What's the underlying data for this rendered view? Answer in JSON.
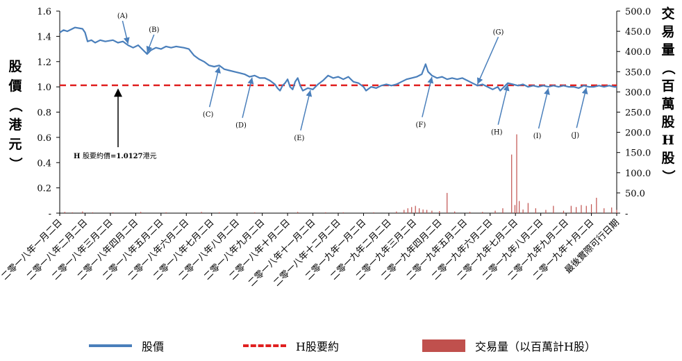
{
  "chart_data": {
    "type": "line",
    "left_axis": {
      "title": "股價（港元）",
      "ticks": [
        "1.6",
        "1.4",
        "1.2",
        "1.0",
        "0.8",
        "0.6",
        "0.4",
        "0.2",
        "-"
      ],
      "range": [
        0,
        1.6
      ]
    },
    "right_axis": {
      "title": "交易量（百萬股H股）",
      "ticks": [
        "500.0",
        "450.0",
        "400.0",
        "350.0",
        "300.0",
        "250.0",
        "200.0",
        "150.0",
        "100.0",
        "50.0",
        "-"
      ],
      "range": [
        0,
        500
      ]
    },
    "categories": [
      "二零一八年一月二日",
      "二零一八年二月二日",
      "二零一八年三月二日",
      "二零一八年四月二日",
      "二零一八年五月二日",
      "二零一八年六月二日",
      "二零一八年七月二日",
      "二零一八年八月二日",
      "二零一八年九月二日",
      "二零一八年十月二日",
      "二零一八年十一月二日",
      "二零一八年十二月二日",
      "二零一九年一月二日",
      "二零一九年二月二日",
      "二零一九年三月二日",
      "二零一九年四月二日",
      "二零一九年五月二日",
      "二零一九年六月二日",
      "二零一九年七月二日",
      "二零一九年八月二日",
      "二零一九年九月二日",
      "二零一九年十月二日",
      "最後實際可行日期"
    ],
    "series": [
      {
        "name": "股價",
        "axis": "left",
        "color": "#4a7fbb",
        "points": [
          [
            0.0,
            1.43
          ],
          [
            0.15,
            1.45
          ],
          [
            0.3,
            1.44
          ],
          [
            0.6,
            1.47
          ],
          [
            0.9,
            1.46
          ],
          [
            1.0,
            1.43
          ],
          [
            1.1,
            1.36
          ],
          [
            1.25,
            1.37
          ],
          [
            1.4,
            1.35
          ],
          [
            1.6,
            1.37
          ],
          [
            1.8,
            1.36
          ],
          [
            2.1,
            1.37
          ],
          [
            2.3,
            1.35
          ],
          [
            2.5,
            1.36
          ],
          [
            2.7,
            1.33
          ],
          [
            2.9,
            1.31
          ],
          [
            3.1,
            1.33
          ],
          [
            3.3,
            1.29
          ],
          [
            3.45,
            1.26
          ],
          [
            3.6,
            1.29
          ],
          [
            3.8,
            1.31
          ],
          [
            4.0,
            1.3
          ],
          [
            4.2,
            1.32
          ],
          [
            4.4,
            1.31
          ],
          [
            4.6,
            1.32
          ],
          [
            4.9,
            1.31
          ],
          [
            5.1,
            1.3
          ],
          [
            5.3,
            1.25
          ],
          [
            5.5,
            1.22
          ],
          [
            5.7,
            1.2
          ],
          [
            5.9,
            1.17
          ],
          [
            6.1,
            1.16
          ],
          [
            6.3,
            1.17
          ],
          [
            6.5,
            1.14
          ],
          [
            6.7,
            1.13
          ],
          [
            6.9,
            1.12
          ],
          [
            7.1,
            1.11
          ],
          [
            7.3,
            1.1
          ],
          [
            7.5,
            1.08
          ],
          [
            7.7,
            1.09
          ],
          [
            7.9,
            1.07
          ],
          [
            8.1,
            1.07
          ],
          [
            8.3,
            1.05
          ],
          [
            8.5,
            1.02
          ],
          [
            8.6,
            0.99
          ],
          [
            8.7,
            0.97
          ],
          [
            8.8,
            1.01
          ],
          [
            8.9,
            1.03
          ],
          [
            9.0,
            1.06
          ],
          [
            9.1,
            1.0
          ],
          [
            9.2,
            0.98
          ],
          [
            9.3,
            1.04
          ],
          [
            9.4,
            1.07
          ],
          [
            9.5,
            1.01
          ],
          [
            9.6,
            0.97
          ],
          [
            9.8,
            0.99
          ],
          [
            10.0,
            0.98
          ],
          [
            10.2,
            1.02
          ],
          [
            10.4,
            1.05
          ],
          [
            10.6,
            1.09
          ],
          [
            10.8,
            1.07
          ],
          [
            11.0,
            1.08
          ],
          [
            11.2,
            1.06
          ],
          [
            11.4,
            1.08
          ],
          [
            11.6,
            1.04
          ],
          [
            11.8,
            1.03
          ],
          [
            12.0,
            1.0
          ],
          [
            12.1,
            0.97
          ],
          [
            12.3,
            1.0
          ],
          [
            12.5,
            0.99
          ],
          [
            12.7,
            1.01
          ],
          [
            12.9,
            1.02
          ],
          [
            13.1,
            1.01
          ],
          [
            13.3,
            1.02
          ],
          [
            13.5,
            1.04
          ],
          [
            13.7,
            1.06
          ],
          [
            13.9,
            1.07
          ],
          [
            14.1,
            1.08
          ],
          [
            14.3,
            1.1
          ],
          [
            14.45,
            1.18
          ],
          [
            14.55,
            1.12
          ],
          [
            14.7,
            1.09
          ],
          [
            14.9,
            1.07
          ],
          [
            15.1,
            1.08
          ],
          [
            15.3,
            1.06
          ],
          [
            15.5,
            1.07
          ],
          [
            15.7,
            1.06
          ],
          [
            15.9,
            1.07
          ],
          [
            16.1,
            1.05
          ],
          [
            16.3,
            1.03
          ],
          [
            16.5,
            1.01
          ],
          [
            16.7,
            1.02
          ],
          [
            16.9,
            1.0
          ],
          [
            17.1,
            0.98
          ],
          [
            17.3,
            1.0
          ],
          [
            17.4,
            0.97
          ],
          [
            17.5,
            0.99
          ],
          [
            17.7,
            1.03
          ],
          [
            17.9,
            1.02
          ],
          [
            18.1,
            1.01
          ],
          [
            18.3,
            1.02
          ],
          [
            18.5,
            1.0
          ],
          [
            18.7,
            1.01
          ],
          [
            18.9,
            1.0
          ],
          [
            19.1,
            1.01
          ],
          [
            19.3,
            1.0
          ],
          [
            19.5,
            1.01
          ],
          [
            19.7,
            1.0
          ],
          [
            19.9,
            1.01
          ],
          [
            20.1,
            1.0
          ],
          [
            20.3,
            1.0
          ],
          [
            20.5,
            0.99
          ],
          [
            20.7,
            1.01
          ],
          [
            20.9,
            1.0
          ],
          [
            21.1,
            1.0
          ],
          [
            21.3,
            1.01
          ],
          [
            21.5,
            1.0
          ],
          [
            21.7,
            1.01
          ],
          [
            21.9,
            1.0
          ],
          [
            22.0,
            1.0
          ]
        ]
      },
      {
        "name": "H股要約",
        "axis": "left",
        "color": "#e02020",
        "constant": 1.0127
      },
      {
        "name": "交易量（以百萬計H股）",
        "axis": "right",
        "color": "#c0504d",
        "points": [
          [
            0.2,
            3
          ],
          [
            0.5,
            2
          ],
          [
            0.9,
            4
          ],
          [
            1.3,
            2
          ],
          [
            2.1,
            2
          ],
          [
            3.2,
            3
          ],
          [
            4.2,
            2
          ],
          [
            5.6,
            3
          ],
          [
            6.3,
            2
          ],
          [
            7.7,
            2
          ],
          [
            9.4,
            3
          ],
          [
            10.5,
            2
          ],
          [
            11.2,
            2
          ],
          [
            12.4,
            2
          ],
          [
            13.3,
            4
          ],
          [
            13.6,
            8
          ],
          [
            13.75,
            12
          ],
          [
            13.9,
            15
          ],
          [
            14.05,
            18
          ],
          [
            14.2,
            12
          ],
          [
            14.35,
            9
          ],
          [
            14.5,
            8
          ],
          [
            14.7,
            6
          ],
          [
            15.0,
            5
          ],
          [
            15.3,
            50
          ],
          [
            15.6,
            4
          ],
          [
            16.2,
            3
          ],
          [
            16.7,
            3
          ],
          [
            17.2,
            6
          ],
          [
            17.5,
            12
          ],
          [
            17.85,
            145
          ],
          [
            17.98,
            20
          ],
          [
            18.05,
            195
          ],
          [
            18.15,
            30
          ],
          [
            18.3,
            9
          ],
          [
            18.5,
            25
          ],
          [
            18.8,
            12
          ],
          [
            19.2,
            8
          ],
          [
            19.5,
            18
          ],
          [
            19.9,
            6
          ],
          [
            20.2,
            18
          ],
          [
            20.4,
            15
          ],
          [
            20.6,
            20
          ],
          [
            20.8,
            18
          ],
          [
            21.0,
            22
          ],
          [
            21.2,
            38
          ],
          [
            21.5,
            12
          ],
          [
            21.8,
            14
          ],
          [
            22.0,
            8
          ]
        ]
      }
    ],
    "annotations": [
      {
        "label": "(A)",
        "index": 2.7
      },
      {
        "label": "(B)",
        "index": 3.45
      },
      {
        "label": "(C)",
        "index": 6.3
      },
      {
        "label": "(D)",
        "index": 7.6
      },
      {
        "label": "(E)",
        "index": 9.9
      },
      {
        "label": "(F)",
        "index": 14.7
      },
      {
        "label": "(G)",
        "index": 16.5
      },
      {
        "label": "(H)",
        "index": 17.7
      },
      {
        "label": "(I)",
        "index": 19.3
      },
      {
        "label": "(J)",
        "index": 20.8
      }
    ],
    "offer_note": {
      "prefix": "H",
      "text": "股要約價",
      "value": "=1.0127",
      "suffix": "港元"
    },
    "legend": [
      "股價",
      "H股要約",
      "交易量（以百萬計H股）"
    ]
  }
}
